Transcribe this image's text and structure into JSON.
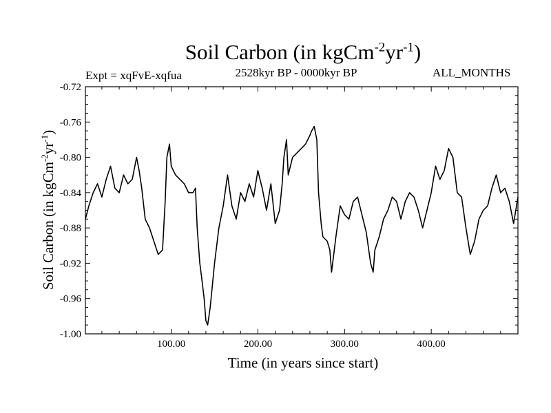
{
  "chart_data": {
    "type": "line",
    "title_main": "Soil Carbon (in kgCm",
    "title_sup1": "-2",
    "title_mid": "yr",
    "title_sup2": "-1",
    "title_end": ")",
    "expt": "Expt = xqFvE-xqfua",
    "period": "2528kyr BP - 0000kyr BP",
    "months": "ALL_MONTHS",
    "xlabel": "Time (in years since start)",
    "ylabel_main": "Soil Carbon (in kgCm",
    "ylabel_sup1": "-2",
    "ylabel_mid": "yr",
    "ylabel_sup2": "-1",
    "ylabel_end": ")",
    "xlim": [
      1,
      500
    ],
    "ylim": [
      -1.0,
      -0.72
    ],
    "xticks": [
      100,
      200,
      300,
      400
    ],
    "xtick_labels": [
      "100.00",
      "200.00",
      "300.00",
      "400.00"
    ],
    "yticks": [
      -1.0,
      -0.96,
      -0.92,
      -0.88,
      -0.84,
      -0.8,
      -0.76,
      -0.72
    ],
    "ytick_labels": [
      "-1.00",
      "-0.96",
      "-0.92",
      "-0.88",
      "-0.84",
      "-0.80",
      "-0.76",
      "-0.72"
    ],
    "series": [
      {
        "name": "Soil Carbon",
        "x": [
          1,
          5,
          10,
          15,
          20,
          25,
          30,
          35,
          40,
          45,
          50,
          55,
          60,
          63,
          66,
          70,
          75,
          80,
          85,
          90,
          93,
          95,
          98,
          100,
          105,
          110,
          115,
          120,
          125,
          128,
          130,
          133,
          135,
          138,
          140,
          142,
          145,
          150,
          155,
          160,
          165,
          170,
          175,
          180,
          185,
          190,
          195,
          200,
          205,
          210,
          215,
          220,
          225,
          228,
          230,
          233,
          235,
          240,
          245,
          250,
          255,
          260,
          262,
          265,
          268,
          270,
          273,
          275,
          280,
          283,
          285,
          290,
          295,
          300,
          305,
          310,
          315,
          320,
          325,
          330,
          333,
          335,
          340,
          345,
          350,
          355,
          360,
          365,
          370,
          375,
          380,
          385,
          390,
          395,
          400,
          405,
          410,
          415,
          420,
          425,
          430,
          435,
          440,
          445,
          450,
          455,
          460,
          465,
          470,
          475,
          480,
          485,
          490,
          495,
          500
        ],
        "values": [
          -0.87,
          -0.855,
          -0.84,
          -0.83,
          -0.845,
          -0.825,
          -0.81,
          -0.835,
          -0.84,
          -0.82,
          -0.83,
          -0.825,
          -0.8,
          -0.815,
          -0.835,
          -0.87,
          -0.88,
          -0.895,
          -0.91,
          -0.905,
          -0.85,
          -0.8,
          -0.785,
          -0.81,
          -0.82,
          -0.825,
          -0.83,
          -0.84,
          -0.84,
          -0.835,
          -0.88,
          -0.92,
          -0.935,
          -0.96,
          -0.985,
          -0.99,
          -0.97,
          -0.92,
          -0.88,
          -0.855,
          -0.82,
          -0.855,
          -0.87,
          -0.84,
          -0.85,
          -0.83,
          -0.845,
          -0.815,
          -0.835,
          -0.86,
          -0.83,
          -0.875,
          -0.86,
          -0.83,
          -0.8,
          -0.78,
          -0.82,
          -0.8,
          -0.795,
          -0.79,
          -0.785,
          -0.775,
          -0.77,
          -0.765,
          -0.78,
          -0.84,
          -0.875,
          -0.89,
          -0.895,
          -0.905,
          -0.93,
          -0.89,
          -0.855,
          -0.865,
          -0.87,
          -0.85,
          -0.845,
          -0.865,
          -0.885,
          -0.92,
          -0.93,
          -0.905,
          -0.89,
          -0.87,
          -0.86,
          -0.845,
          -0.85,
          -0.87,
          -0.85,
          -0.84,
          -0.845,
          -0.86,
          -0.88,
          -0.86,
          -0.84,
          -0.81,
          -0.825,
          -0.815,
          -0.79,
          -0.8,
          -0.84,
          -0.845,
          -0.88,
          -0.91,
          -0.895,
          -0.87,
          -0.86,
          -0.855,
          -0.835,
          -0.82,
          -0.84,
          -0.835,
          -0.85,
          -0.875,
          -0.845
        ]
      }
    ]
  }
}
